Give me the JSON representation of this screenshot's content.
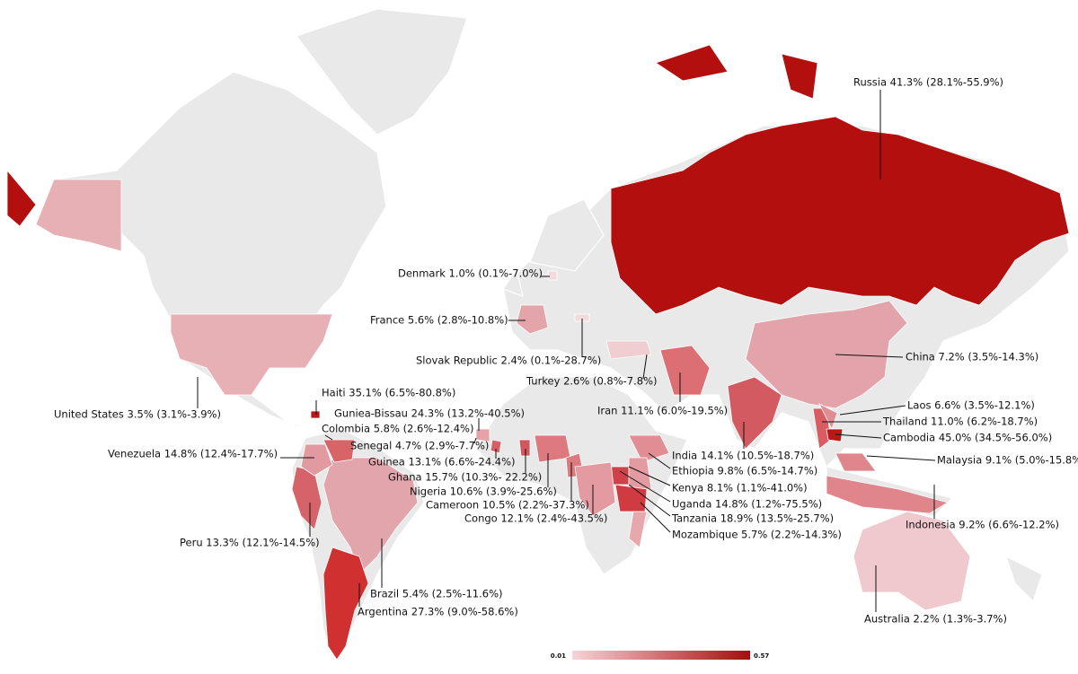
{
  "annotations": [
    {
      "label": "Russia 41.3% (28.1%-55.9%)"
    },
    {
      "label": "Denmark 1.0% (0.1%-7.0%)"
    },
    {
      "label": "France 5.6% (2.8%-10.8%)"
    },
    {
      "label": "Slovak Republic 2.4% (0.1%-28.7%)"
    },
    {
      "label": "Turkey 2.6% (0.8%-7.8%)"
    },
    {
      "label": "China 7.2% (3.5%-14.3%)"
    },
    {
      "label": "Iran 11.1% (6.0%-19.5%)"
    },
    {
      "label": "Laos 6.6% (3.5%-12.1%)"
    },
    {
      "label": "Thailand 11.0% (6.2%-18.7%)"
    },
    {
      "label": "Cambodia 45.0% (34.5%-56.0%)"
    },
    {
      "label": "India 14.1% (10.5%-18.7%)"
    },
    {
      "label": "Malaysia 9.1% (5.0%-15.8%)"
    },
    {
      "label": "Ethiopia 9.8% (6.5%-14.7%)"
    },
    {
      "label": "Kenya 8.1% (1.1%-41.0%)"
    },
    {
      "label": "Uganda 14.8% (1.2%-75.5%)"
    },
    {
      "label": "Tanzania 18.9% (13.5%-25.7%)"
    },
    {
      "label": "Mozambique 5.7% (2.2%-14.3%)"
    },
    {
      "label": "Indonesia 9.2% (6.6%-12.2%)"
    },
    {
      "label": "Australia 2.2% (1.3%-3.7%)"
    },
    {
      "label": "United States 3.5% (3.1%-3.9%)"
    },
    {
      "label": "Haiti 35.1% (6.5%-80.8%)"
    },
    {
      "label": "Guniea-Bissau 24.3% (13.2%-40.5%)"
    },
    {
      "label": "Colombia 5.8% (2.6%-12.4%)"
    },
    {
      "label": "Senegal 4.7% (2.9%-7.7%)"
    },
    {
      "label": "Venezuela 14.8% (12.4%-17.7%)"
    },
    {
      "label": "Guinea 13.1% (6.6%-24.4%)"
    },
    {
      "label": "Ghana 15.7% (10.3%- 22.2%)"
    },
    {
      "label": "Nigeria 10.6% (3.9%-25.6%)"
    },
    {
      "label": "Cameroon 10.5% (2.2%-37.3%)"
    },
    {
      "label": "Congo 12.1% (2.4%-43.5%)"
    },
    {
      "label": "Peru 13.3% (12.1%-14.5%)"
    },
    {
      "label": "Brazil 5.4% (2.5%-11.6%)"
    },
    {
      "label": "Argentina 27.3% (9.0%-58.6%)"
    }
  ],
  "legend": {
    "min": 0.01,
    "max": 0.57
  }
}
